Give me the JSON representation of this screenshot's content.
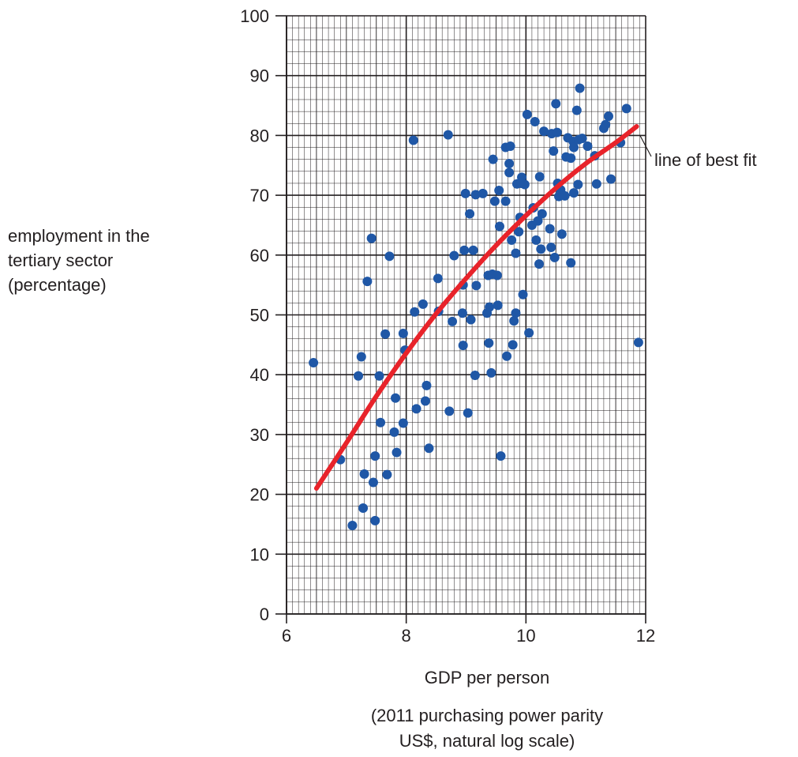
{
  "chart_data": {
    "type": "scatter",
    "ylabel_lines": [
      "employment in the",
      "tertiary sector",
      "(percentage)"
    ],
    "xlabel": "GDP per person",
    "xlabel_note_lines": [
      "(2011 purchasing power parity",
      "US$, natural log scale)"
    ],
    "annotation": "line of best fit",
    "xlim": [
      6,
      12
    ],
    "ylim": [
      0,
      100
    ],
    "x_ticks": [
      "6",
      "8",
      "10",
      "12"
    ],
    "y_ticks": [
      "0",
      "10",
      "20",
      "30",
      "40",
      "50",
      "60",
      "70",
      "80",
      "90",
      "100"
    ],
    "grid": true,
    "point_color": "#1f57a6",
    "fit_color": "#e8232a",
    "points": [
      [
        6.45,
        42.0
      ],
      [
        6.9,
        25.8
      ],
      [
        7.1,
        14.8
      ],
      [
        7.2,
        39.8
      ],
      [
        7.25,
        43.0
      ],
      [
        7.28,
        17.7
      ],
      [
        7.3,
        23.4
      ],
      [
        7.35,
        55.6
      ],
      [
        7.42,
        62.8
      ],
      [
        7.45,
        22.0
      ],
      [
        7.48,
        15.6
      ],
      [
        7.48,
        26.4
      ],
      [
        7.55,
        39.8
      ],
      [
        7.57,
        32.0
      ],
      [
        7.65,
        46.8
      ],
      [
        7.68,
        23.3
      ],
      [
        7.72,
        59.8
      ],
      [
        7.8,
        30.4
      ],
      [
        7.82,
        36.1
      ],
      [
        7.84,
        27.0
      ],
      [
        7.95,
        46.9
      ],
      [
        7.95,
        31.9
      ],
      [
        7.98,
        44.1
      ],
      [
        8.12,
        79.2
      ],
      [
        8.14,
        50.5
      ],
      [
        8.17,
        34.3
      ],
      [
        8.28,
        51.8
      ],
      [
        8.32,
        35.6
      ],
      [
        8.34,
        38.2
      ],
      [
        8.38,
        27.7
      ],
      [
        8.53,
        56.1
      ],
      [
        8.54,
        50.6
      ],
      [
        8.7,
        80.1
      ],
      [
        8.72,
        33.9
      ],
      [
        8.77,
        48.9
      ],
      [
        8.8,
        59.9
      ],
      [
        8.94,
        50.3
      ],
      [
        8.95,
        55.0
      ],
      [
        8.95,
        44.9
      ],
      [
        8.97,
        60.8
      ],
      [
        8.99,
        70.3
      ],
      [
        9.03,
        33.6
      ],
      [
        9.06,
        66.9
      ],
      [
        9.08,
        49.2
      ],
      [
        9.12,
        60.8
      ],
      [
        9.15,
        39.9
      ],
      [
        9.16,
        70.1
      ],
      [
        9.17,
        54.9
      ],
      [
        9.28,
        70.3
      ],
      [
        9.35,
        50.3
      ],
      [
        9.37,
        56.6
      ],
      [
        9.38,
        45.3
      ],
      [
        9.39,
        51.3
      ],
      [
        9.42,
        40.3
      ],
      [
        9.44,
        56.8
      ],
      [
        9.45,
        76.0
      ],
      [
        9.48,
        69.0
      ],
      [
        9.52,
        56.6
      ],
      [
        9.53,
        51.6
      ],
      [
        9.55,
        70.8
      ],
      [
        9.56,
        64.8
      ],
      [
        9.58,
        26.4
      ],
      [
        9.66,
        78.0
      ],
      [
        9.66,
        69.0
      ],
      [
        9.68,
        43.1
      ],
      [
        9.72,
        75.3
      ],
      [
        9.72,
        73.8
      ],
      [
        9.74,
        78.2
      ],
      [
        9.76,
        62.5
      ],
      [
        9.78,
        45.0
      ],
      [
        9.8,
        49.0
      ],
      [
        9.83,
        60.3
      ],
      [
        9.83,
        50.3
      ],
      [
        9.85,
        71.9
      ],
      [
        9.88,
        63.9
      ],
      [
        9.9,
        66.3
      ],
      [
        9.92,
        72.0
      ],
      [
        9.93,
        73.0
      ],
      [
        9.95,
        53.4
      ],
      [
        9.98,
        71.8
      ],
      [
        10.02,
        83.5
      ],
      [
        10.05,
        47.0
      ],
      [
        10.1,
        65.0
      ],
      [
        10.12,
        67.9
      ],
      [
        10.15,
        82.3
      ],
      [
        10.17,
        62.5
      ],
      [
        10.2,
        65.7
      ],
      [
        10.22,
        58.5
      ],
      [
        10.23,
        73.1
      ],
      [
        10.25,
        61.0
      ],
      [
        10.27,
        66.9
      ],
      [
        10.3,
        80.7
      ],
      [
        10.4,
        64.4
      ],
      [
        10.42,
        61.3
      ],
      [
        10.43,
        80.3
      ],
      [
        10.46,
        77.4
      ],
      [
        10.48,
        59.6
      ],
      [
        10.5,
        85.3
      ],
      [
        10.52,
        80.5
      ],
      [
        10.53,
        72.0
      ],
      [
        10.55,
        69.8
      ],
      [
        10.58,
        70.9
      ],
      [
        10.6,
        63.5
      ],
      [
        10.62,
        70.0
      ],
      [
        10.65,
        69.9
      ],
      [
        10.67,
        76.4
      ],
      [
        10.7,
        79.6
      ],
      [
        10.75,
        58.7
      ],
      [
        10.75,
        76.2
      ],
      [
        10.79,
        79.0
      ],
      [
        10.8,
        70.4
      ],
      [
        10.8,
        78.0
      ],
      [
        10.85,
        84.2
      ],
      [
        10.87,
        71.8
      ],
      [
        10.88,
        79.3
      ],
      [
        10.9,
        87.9
      ],
      [
        10.94,
        79.5
      ],
      [
        11.03,
        78.2
      ],
      [
        11.15,
        76.6
      ],
      [
        11.18,
        71.9
      ],
      [
        11.3,
        81.2
      ],
      [
        11.33,
        81.8
      ],
      [
        11.38,
        83.2
      ],
      [
        11.42,
        72.7
      ],
      [
        11.58,
        78.8
      ],
      [
        11.68,
        84.5
      ],
      [
        11.88,
        45.4
      ]
    ],
    "fit_line": [
      [
        6.5,
        21.0
      ],
      [
        7.0,
        28.6
      ],
      [
        7.5,
        36.4
      ],
      [
        8.0,
        43.6
      ],
      [
        8.5,
        50.2
      ],
      [
        9.0,
        56.1
      ],
      [
        9.5,
        61.6
      ],
      [
        10.0,
        66.6
      ],
      [
        10.5,
        71.2
      ],
      [
        11.0,
        75.3
      ],
      [
        11.5,
        78.8
      ],
      [
        11.85,
        81.5
      ]
    ]
  }
}
